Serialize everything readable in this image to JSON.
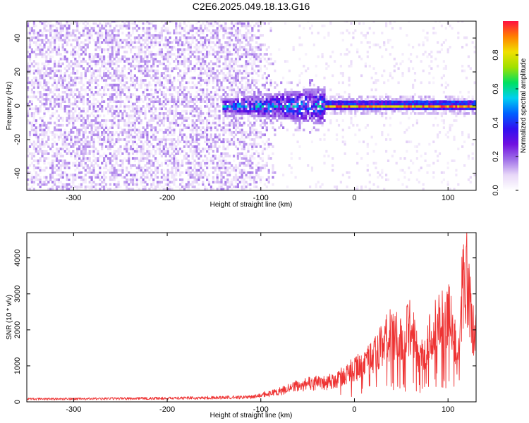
{
  "title": "C2E6.2025.049.18.13.G16",
  "chart_data": [
    {
      "type": "heatmap",
      "title": "C2E6.2025.049.18.13.G16",
      "xlabel": "Height of straight line (km)",
      "ylabel": "Frequency (Hz)",
      "xlim": [
        -350,
        130
      ],
      "ylim": [
        -50,
        50
      ],
      "x_ticks": [
        "-300",
        "-200",
        "-100",
        "0",
        "100"
      ],
      "y_ticks": [
        "-40",
        "-20",
        "0",
        "20",
        "40"
      ],
      "colorbar": {
        "label": "Normalized spectral amplitude",
        "range": [
          0,
          1
        ],
        "ticks": [
          "0.0",
          "0.2",
          "0.4",
          "0.6",
          "0.8"
        ],
        "colormap": [
          "#ffffff",
          "#e8d8f8",
          "#a070e8",
          "#7010e0",
          "#3010f0",
          "#0060ff",
          "#00d0f0",
          "#00e060",
          "#a0e000",
          "#f0e000",
          "#ff8000",
          "#ff1040"
        ]
      },
      "features": {
        "noise_region_x": [
          -350,
          -80
        ],
        "noise_amplitude": 0.1,
        "transition_x": [
          -140,
          -30
        ],
        "transition_amplitude": 0.5,
        "tone_x": [
          -30,
          130
        ],
        "tone_frequency": 0,
        "tone_amplitude": 1.0
      }
    },
    {
      "type": "line",
      "xlabel": "Height of straight line (km)",
      "ylabel": "SNR (10 * v/v)",
      "xlim": [
        -350,
        130
      ],
      "ylim": [
        0,
        4700
      ],
      "x_ticks": [
        "-300",
        "-200",
        "-100",
        "0",
        "100"
      ],
      "y_ticks": [
        "0",
        "1000",
        "2000",
        "3000",
        "4000"
      ],
      "color": "#ee3333",
      "series": [
        {
          "x": [
            -350,
            -300,
            -250,
            -200,
            -150,
            -110,
            -100,
            -90,
            -80,
            -70,
            -60,
            -50,
            -40,
            -30,
            -20,
            -10,
            0,
            10,
            20,
            30,
            40,
            50,
            60,
            70,
            80,
            90,
            100,
            105,
            110,
            115,
            120,
            125,
            130
          ],
          "y": [
            120,
            130,
            140,
            150,
            180,
            200,
            260,
            300,
            380,
            500,
            620,
            650,
            720,
            700,
            800,
            1000,
            1250,
            1300,
            1700,
            2100,
            2600,
            2200,
            2800,
            1500,
            2400,
            2900,
            3400,
            3200,
            1200,
            4000,
            4700,
            3000,
            2600
          ]
        }
      ]
    }
  ]
}
